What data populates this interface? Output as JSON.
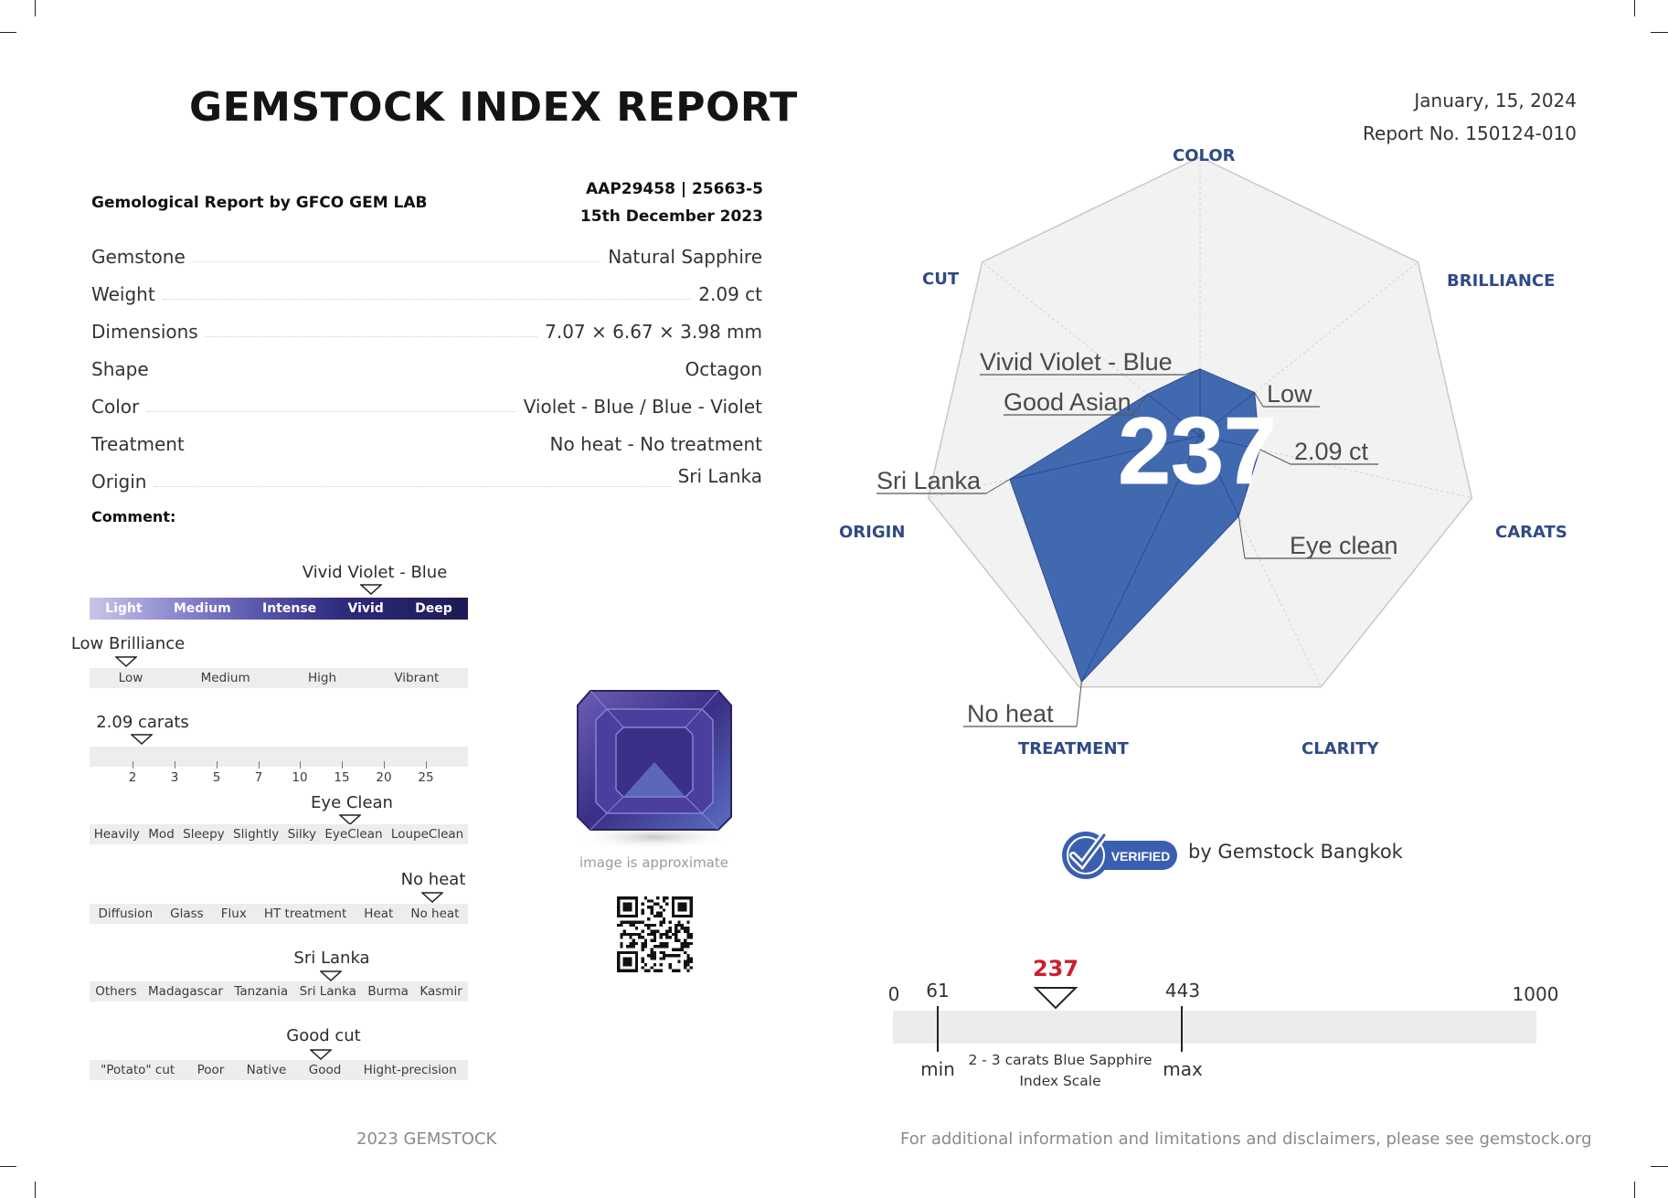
{
  "header": {
    "title": "GEMSTOCK INDEX REPORT",
    "date": "January, 15, 2024",
    "report_no": "Report No. 150124-010"
  },
  "lab": {
    "name": "Gemological Report by GFCO GEM LAB",
    "ref": "AAP29458 | 25663-5",
    "ref_date": "15th December 2023"
  },
  "specs": [
    {
      "key": "Gemstone",
      "value": "Natural Sapphire"
    },
    {
      "key": "Weight",
      "value": "2.09 ct"
    },
    {
      "key": "Dimensions",
      "value": "7.07 × 6.67 × 3.98 mm"
    },
    {
      "key": "Shape",
      "value": "Octagon"
    },
    {
      "key": "Color",
      "value": "Violet - Blue / Blue - Violet"
    },
    {
      "key": "Treatment",
      "value": "No heat - No treatment"
    },
    {
      "key": "Origin",
      "value": "Sri Lanka"
    }
  ],
  "comment_label": "Comment:",
  "scales": {
    "color": {
      "marker": "Vivid Violet - Blue",
      "steps": [
        "Light",
        "Medium",
        "Intense",
        "Vivid",
        "Deep"
      ],
      "selected_index": 3
    },
    "brilliance": {
      "marker": "Low Brilliance",
      "steps": [
        "Low",
        "Medium",
        "High",
        "Vibrant"
      ],
      "selected_index": 0
    },
    "carats": {
      "marker": "2.09 carats",
      "ticks": [
        "2",
        "3",
        "5",
        "7",
        "10",
        "15",
        "20",
        "25"
      ],
      "value": 2.09
    },
    "clarity": {
      "marker": "Eye Clean",
      "steps": [
        "Heavily",
        "Mod",
        "Sleepy",
        "Slightly",
        "Silky",
        "EyeClean",
        "LoupeClean"
      ],
      "selected_index": 5
    },
    "treatment": {
      "marker": "No heat",
      "steps": [
        "Diffusion",
        "Glass",
        "Flux",
        "HT treatment",
        "Heat",
        "No heat"
      ],
      "selected_index": 5
    },
    "origin": {
      "marker": "Sri Lanka",
      "steps": [
        "Others",
        "Madagascar",
        "Tanzania",
        "Sri Lanka",
        "Burma",
        "Kasmir"
      ],
      "selected_index": 3
    },
    "cut": {
      "marker": "Good cut",
      "steps": [
        "\"Potato\" cut",
        "Poor",
        "Native",
        "Good",
        "Hight-precision"
      ],
      "selected_index": 3
    }
  },
  "image_caption": "image is approximate",
  "radar": {
    "score": "237",
    "axes": [
      "COLOR",
      "BRILLIANCE",
      "CARATS",
      "CLARITY",
      "TREATMENT",
      "ORIGIN",
      "CUT"
    ],
    "values": [
      0.24,
      0.25,
      0.22,
      0.32,
      0.98,
      0.7,
      0.24
    ],
    "annotations": {
      "color": "Vivid Violet - Blue",
      "cut": "Good Asian",
      "brilliance": "Low",
      "carats": "2.09 ct",
      "origin": "Sri Lanka",
      "clarity": "Eye clean",
      "treatment": "No heat"
    },
    "fill_color": "#4169b0"
  },
  "verified": {
    "badge": "VERIFIED",
    "by": "by Gemstock Bangkok"
  },
  "index_scale": {
    "min_value": "0",
    "max_value": "1000",
    "score": "237",
    "low_mark": "61",
    "high_mark": "443",
    "min_label": "min",
    "max_label": "max",
    "caption_line1": "2 - 3 carats Blue Sapphire",
    "caption_line2": "Index Scale",
    "score_color": "#c8202e"
  },
  "footer": {
    "left": "2023 GEMSTOCK",
    "right": "For additional information and limitations and disclaimers, please see gemstock.org"
  }
}
